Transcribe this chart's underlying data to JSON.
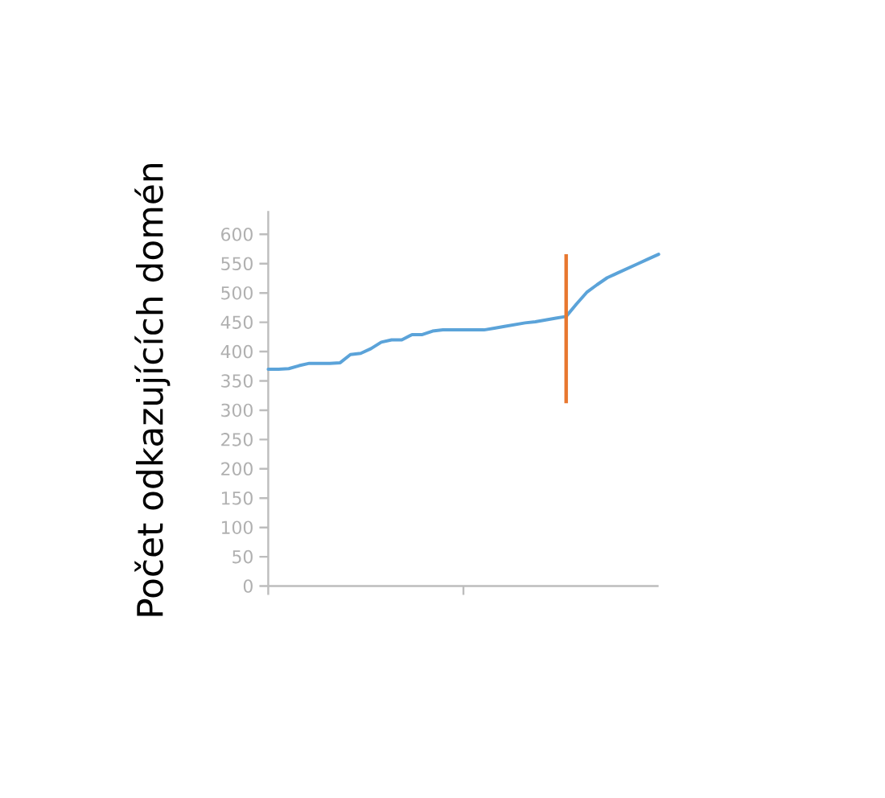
{
  "chart_data": {
    "type": "line",
    "ylabel": "Počet odkazujících domén",
    "categories": [
      null,
      null,
      null,
      null,
      null,
      null,
      null,
      null,
      null,
      null,
      null,
      null,
      null,
      null,
      null,
      null,
      null,
      null,
      null,
      null,
      null,
      null,
      null,
      null,
      null,
      null,
      null,
      null,
      null,
      null,
      null,
      null,
      null,
      null,
      null,
      null,
      null,
      null,
      null
    ],
    "ylim": [
      0,
      640
    ],
    "yticks": [
      0,
      50,
      100,
      150,
      200,
      250,
      300,
      350,
      400,
      450,
      500,
      550,
      600
    ],
    "tick_labels": "y",
    "marker": "none",
    "series": [
      {
        "color": "#5ba3d9",
        "values": [
          370,
          370,
          371,
          376,
          380,
          380,
          380,
          381,
          395,
          397,
          405,
          416,
          420,
          420,
          429,
          429,
          435,
          437,
          437,
          437,
          437,
          437,
          440,
          443,
          446,
          449,
          451,
          454,
          457,
          460,
          481,
          501,
          514,
          526,
          534,
          542,
          550,
          558,
          566
        ]
      },
      {
        "type": "bar",
        "color": "#e8772e",
        "values": [
          null,
          null,
          null,
          null,
          null,
          null,
          null,
          null,
          null,
          null,
          null,
          null,
          null,
          null,
          null,
          null,
          null,
          null,
          null,
          null,
          null,
          null,
          null,
          null,
          null,
          null,
          null,
          null,
          null,
          254,
          null,
          null,
          null,
          null,
          null,
          null,
          null,
          null,
          null
        ],
        "base": [
          null,
          null,
          null,
          null,
          null,
          null,
          null,
          null,
          null,
          null,
          null,
          null,
          null,
          null,
          null,
          null,
          null,
          null,
          null,
          null,
          null,
          null,
          null,
          null,
          null,
          null,
          null,
          null,
          null,
          312,
          null,
          null,
          null,
          null,
          null,
          null,
          null,
          null,
          null
        ]
      }
    ]
  }
}
